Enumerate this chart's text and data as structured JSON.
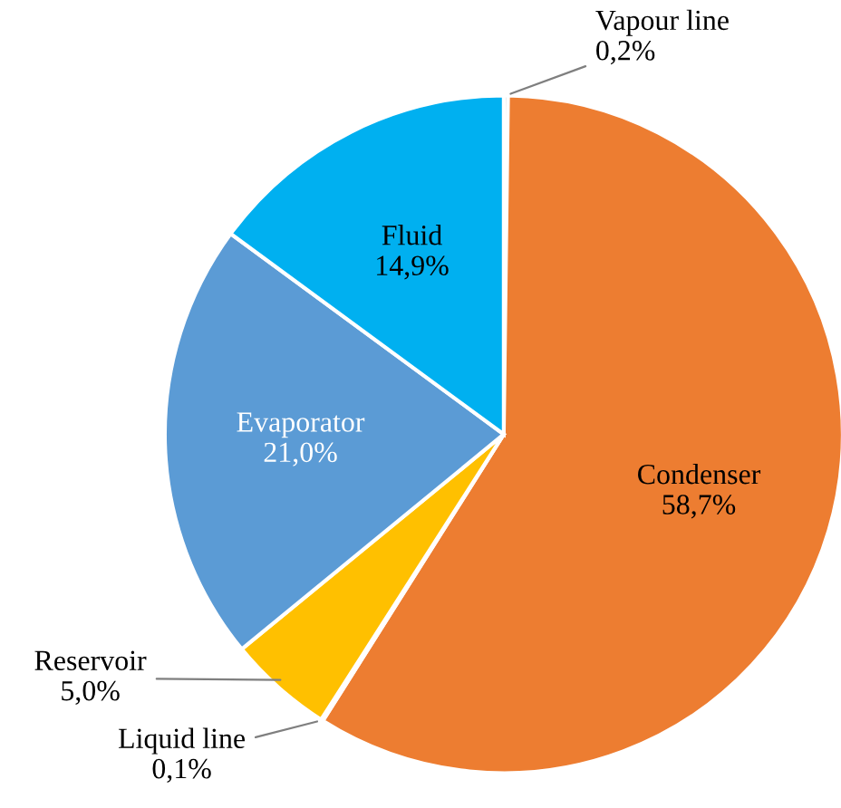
{
  "chart_data": {
    "type": "pie",
    "categories": [
      "Vapour line",
      "Condenser",
      "Liquid line",
      "Reservoir",
      "Evaporator",
      "Fluid"
    ],
    "values": [
      0.2,
      58.7,
      0.1,
      5.0,
      21.0,
      14.9
    ],
    "value_labels": [
      "0,2%",
      "58,7%",
      "0,1%",
      "5,0%",
      "21,0%",
      "14,9%"
    ],
    "colors": [
      "#a5a5a5",
      "#ed7d31",
      "#4472c4",
      "#ffc000",
      "#5b9bd5",
      "#00b0f0"
    ],
    "legend": false
  }
}
